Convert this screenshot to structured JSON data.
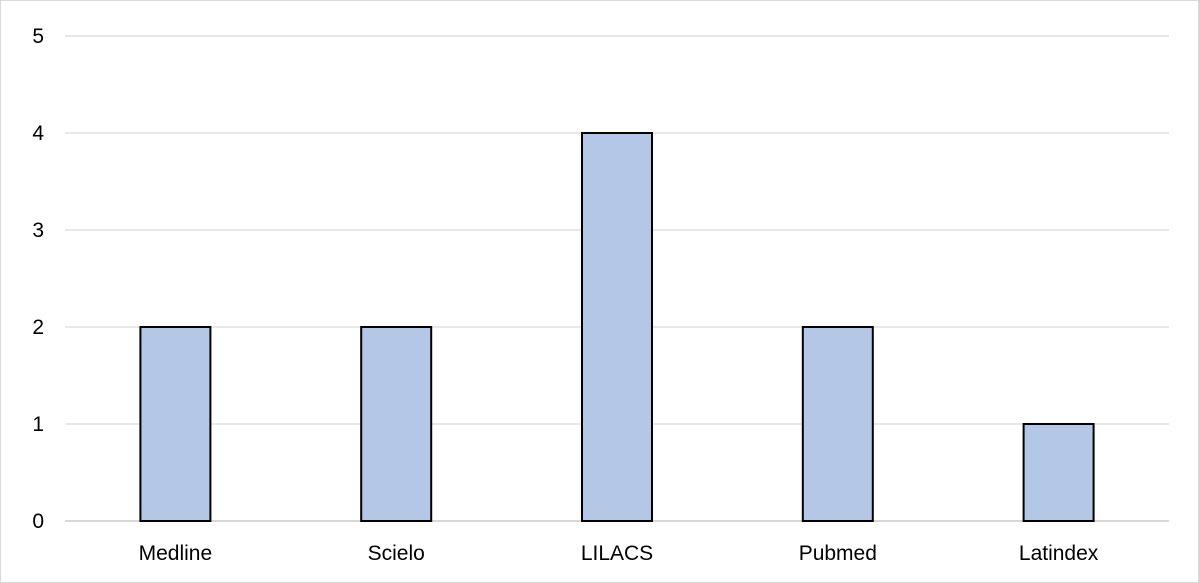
{
  "chart_data": {
    "type": "bar",
    "categories": [
      "Medline",
      "Scielo",
      "LILACS",
      "Pubmed",
      "Latindex"
    ],
    "values": [
      2,
      2,
      4,
      2,
      1
    ],
    "title": "",
    "xlabel": "",
    "ylabel": "",
    "ylim": [
      0,
      5
    ],
    "yticks": [
      "0",
      "1",
      "2",
      "3",
      "4",
      "5"
    ],
    "grid": true,
    "legend": "none",
    "colors": {
      "bar_fill": "#b4c7e7",
      "bar_edge": "#000000",
      "gridline": "#d9d9d9"
    }
  }
}
